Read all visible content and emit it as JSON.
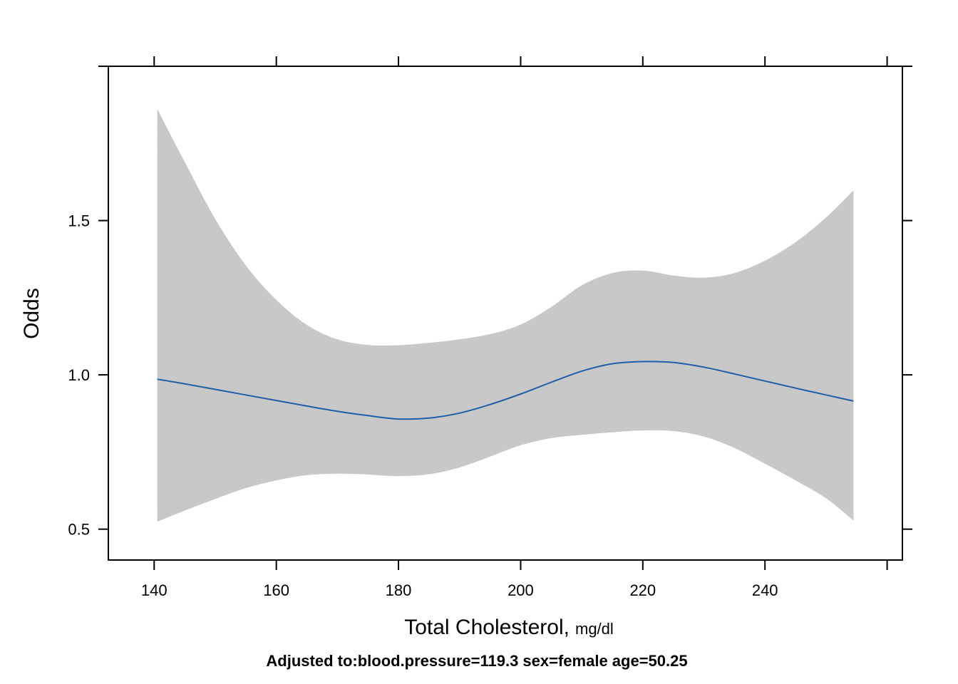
{
  "chart_data": {
    "type": "line",
    "xlabel": "Total Cholesterol,",
    "xlabel_unit": "mg/dl",
    "ylabel": "Odds",
    "caption": "Adjusted to:blood.pressure=119.3 sex=female age=50.25",
    "xlim": [
      132.5,
      262.5
    ],
    "ylim": [
      0.4,
      2.0
    ],
    "x_ticks": [
      140,
      160,
      180,
      200,
      220,
      240
    ],
    "x_tick_labels": [
      "140",
      "160",
      "180",
      "200",
      "220",
      "240"
    ],
    "y_ticks": [
      0.5,
      1.0,
      1.5
    ],
    "y_tick_labels": [
      "0.5",
      "1.0",
      "1.5"
    ],
    "grid": false,
    "colors": {
      "line": "#1f5fa8",
      "band": "#c8c8c8",
      "axis": "#000000"
    },
    "series": [
      {
        "x": [
          140.5,
          145,
          150,
          155,
          160,
          165,
          170,
          175,
          180,
          185,
          190,
          195,
          200,
          205,
          210,
          215,
          220,
          225,
          230,
          235,
          240,
          245,
          250,
          254.5
        ],
        "y": [
          0.986,
          0.971,
          0.953,
          0.935,
          0.917,
          0.899,
          0.882,
          0.868,
          0.857,
          0.86,
          0.876,
          0.904,
          0.938,
          0.976,
          1.012,
          1.036,
          1.043,
          1.04,
          1.025,
          1.003,
          0.98,
          0.957,
          0.935,
          0.915
        ],
        "lower": [
          0.524,
          0.56,
          0.598,
          0.633,
          0.658,
          0.675,
          0.68,
          0.677,
          0.672,
          0.678,
          0.7,
          0.735,
          0.772,
          0.795,
          0.806,
          0.814,
          0.82,
          0.818,
          0.8,
          0.763,
          0.712,
          0.658,
          0.6,
          0.528
        ],
        "upper": [
          1.862,
          1.69,
          1.505,
          1.355,
          1.243,
          1.162,
          1.115,
          1.097,
          1.096,
          1.104,
          1.115,
          1.132,
          1.163,
          1.22,
          1.29,
          1.33,
          1.338,
          1.322,
          1.315,
          1.33,
          1.37,
          1.43,
          1.51,
          1.598
        ]
      }
    ]
  }
}
